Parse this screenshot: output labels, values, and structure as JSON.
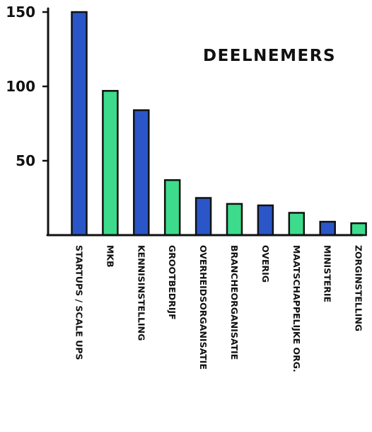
{
  "chart_data": {
    "type": "bar",
    "title": "DEELNEMERS",
    "xlabel": "",
    "ylabel": "",
    "categories": [
      "STARTUPS / SCALE UPS",
      "MKB",
      "KENNISINSTELLING",
      "GROOTBEDRIJF",
      "OVERHEIDSORGANISATIE",
      "BRANCHEORGANISATIE",
      "OVERIG",
      "MAATSCHAPPELIJKE ORG.",
      "MINISTERIE",
      "ZORGINSTELLING"
    ],
    "values": [
      150,
      97,
      84,
      37,
      25,
      21,
      20,
      15,
      9,
      8
    ],
    "bar_colors": [
      "#2a56c8",
      "#3ddb8c",
      "#2a56c8",
      "#3ddb8c",
      "#2a56c8",
      "#3ddb8c",
      "#2a56c8",
      "#3ddb8c",
      "#2a56c8",
      "#3ddb8c"
    ],
    "yticks": [
      50,
      100,
      150
    ],
    "ytick_labels": [
      "50",
      "100",
      "150"
    ],
    "ylim": [
      0,
      150
    ],
    "grid": false,
    "legend": "none"
  }
}
